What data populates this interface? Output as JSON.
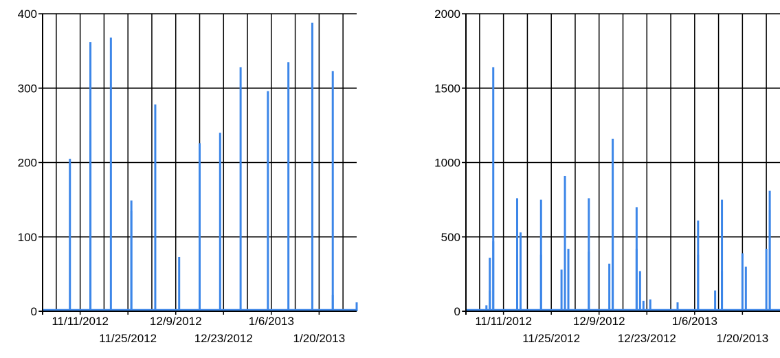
{
  "chart_data": [
    {
      "type": "area",
      "title": "",
      "xlabel": "",
      "ylabel": "",
      "xlim": [
        "2012-10-31",
        "2013-01-31"
      ],
      "ylim": [
        0,
        400
      ],
      "yticks": [
        0,
        100,
        200,
        300,
        400
      ],
      "y_tick_labels": [
        "0",
        "100",
        "200",
        "300",
        "400"
      ],
      "x_tick_labels": [
        {
          "date": "2012-11-11",
          "label": "11/11/2012",
          "row": 1
        },
        {
          "date": "2012-11-25",
          "label": "11/25/2012",
          "row": 2
        },
        {
          "date": "2012-12-09",
          "label": "12/9/2012",
          "row": 1
        },
        {
          "date": "2012-12-23",
          "label": "12/23/2012",
          "row": 2
        },
        {
          "date": "2013-01-06",
          "label": "1/6/2013",
          "row": 1
        },
        {
          "date": "2013-01-20",
          "label": "1/20/2013",
          "row": 2
        }
      ],
      "x_gridlines": [
        "2012-11-04",
        "2012-11-11",
        "2012-11-18",
        "2012-11-25",
        "2012-12-02",
        "2012-12-09",
        "2012-12-16",
        "2012-12-23",
        "2012-12-30",
        "2013-01-06",
        "2013-01-13",
        "2013-01-20",
        "2013-01-27"
      ],
      "grid": true,
      "color": "#3c86e8",
      "series": [
        {
          "baseline": 3,
          "points": [
            {
              "x": "2012-11-08",
              "y": 205
            },
            {
              "x": "2012-11-14",
              "y": 362
            },
            {
              "x": "2012-11-14",
              "y": 243
            },
            {
              "x": "2012-11-20",
              "y": 368
            },
            {
              "x": "2012-11-26",
              "y": 149
            },
            {
              "x": "2012-11-26",
              "y": 135
            },
            {
              "x": "2012-12-03",
              "y": 278
            },
            {
              "x": "2012-12-10",
              "y": 73
            },
            {
              "x": "2012-12-16",
              "y": 226
            },
            {
              "x": "2012-12-22",
              "y": 240
            },
            {
              "x": "2012-12-28",
              "y": 328
            },
            {
              "x": "2013-01-05",
              "y": 296
            },
            {
              "x": "2013-01-11",
              "y": 335
            },
            {
              "x": "2013-01-18",
              "y": 388
            },
            {
              "x": "2013-01-24",
              "y": 323
            },
            {
              "x": "2013-01-24",
              "y": 22
            },
            {
              "x": "2013-01-31",
              "y": 12
            }
          ]
        }
      ]
    },
    {
      "type": "area",
      "title": "",
      "xlabel": "",
      "ylabel": "",
      "xlim": [
        "2012-10-31",
        "2013-01-31"
      ],
      "ylim": [
        0,
        2000
      ],
      "yticks": [
        0,
        500,
        1000,
        1500,
        2000
      ],
      "y_tick_labels": [
        "0",
        "500",
        "1000",
        "1500",
        "2000"
      ],
      "x_tick_labels": [
        {
          "date": "2012-11-11",
          "label": "11/11/2012",
          "row": 1
        },
        {
          "date": "2012-11-25",
          "label": "11/25/2012",
          "row": 2
        },
        {
          "date": "2012-12-09",
          "label": "12/9/2012",
          "row": 1
        },
        {
          "date": "2012-12-23",
          "label": "12/23/2012",
          "row": 2
        },
        {
          "date": "2013-01-06",
          "label": "1/6/2013",
          "row": 1
        },
        {
          "date": "2013-01-20",
          "label": "1/20/2013",
          "row": 2
        }
      ],
      "x_gridlines": [
        "2012-11-04",
        "2012-11-11",
        "2012-11-18",
        "2012-11-25",
        "2012-12-02",
        "2012-12-09",
        "2012-12-16",
        "2012-12-23",
        "2012-12-30",
        "2013-01-06",
        "2013-01-13",
        "2013-01-20",
        "2013-01-27"
      ],
      "grid": true,
      "color": "#3c86e8",
      "series": [
        {
          "baseline": 15,
          "points": [
            {
              "x": "2012-11-06",
              "y": 40
            },
            {
              "x": "2012-11-07",
              "y": 140
            },
            {
              "x": "2012-11-07",
              "y": 360
            },
            {
              "x": "2012-11-08",
              "y": 1640
            },
            {
              "x": "2012-11-08",
              "y": 470
            },
            {
              "x": "2012-11-15",
              "y": 380
            },
            {
              "x": "2012-11-15",
              "y": 760
            },
            {
              "x": "2012-11-16",
              "y": 530
            },
            {
              "x": "2012-11-22",
              "y": 750
            },
            {
              "x": "2012-11-22",
              "y": 380
            },
            {
              "x": "2012-11-28",
              "y": 280
            },
            {
              "x": "2012-11-29",
              "y": 910
            },
            {
              "x": "2012-11-30",
              "y": 420
            },
            {
              "x": "2012-12-06",
              "y": 760
            },
            {
              "x": "2012-12-06",
              "y": 400
            },
            {
              "x": "2012-12-12",
              "y": 320
            },
            {
              "x": "2012-12-13",
              "y": 1160
            },
            {
              "x": "2012-12-13",
              "y": 500
            },
            {
              "x": "2012-12-20",
              "y": 700
            },
            {
              "x": "2012-12-20",
              "y": 420
            },
            {
              "x": "2012-12-21",
              "y": 270
            },
            {
              "x": "2012-12-22",
              "y": 70
            },
            {
              "x": "2012-12-24",
              "y": 80
            },
            {
              "x": "2013-01-01",
              "y": 60
            },
            {
              "x": "2013-01-07",
              "y": 380
            },
            {
              "x": "2013-01-07",
              "y": 610
            },
            {
              "x": "2013-01-12",
              "y": 140
            },
            {
              "x": "2013-01-14",
              "y": 750
            },
            {
              "x": "2013-01-14",
              "y": 270
            },
            {
              "x": "2013-01-20",
              "y": 390
            },
            {
              "x": "2013-01-21",
              "y": 300
            },
            {
              "x": "2013-01-27",
              "y": 420
            },
            {
              "x": "2013-01-28",
              "y": 810
            },
            {
              "x": "2013-01-28",
              "y": 680
            }
          ]
        }
      ]
    }
  ]
}
